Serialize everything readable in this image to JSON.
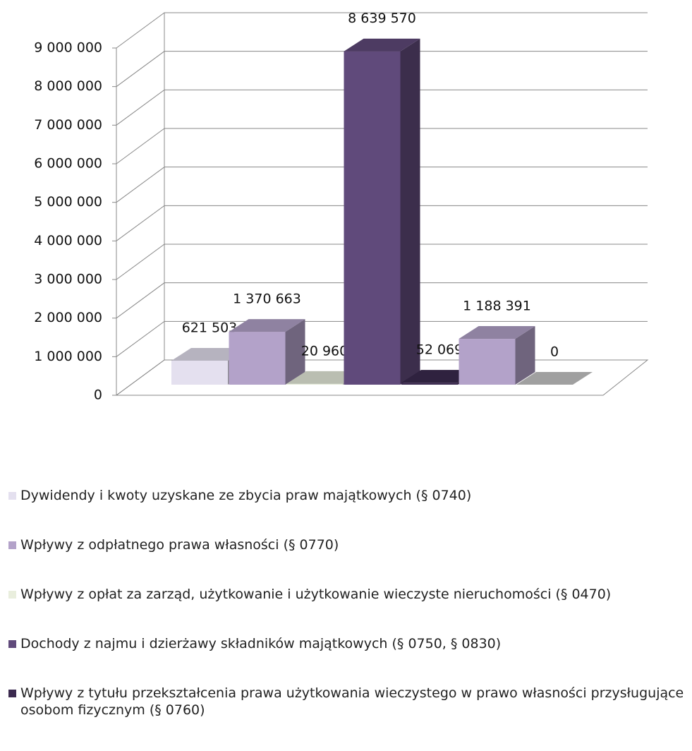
{
  "chart_data": {
    "type": "bar3d",
    "series": [
      {
        "name": "Dywidendy i kwoty uzyskane ze zbycia praw majątkowych (§ 0740)",
        "color": "#e4e0ef",
        "values": [
          621503
        ],
        "value_labels": [
          "621 503"
        ]
      },
      {
        "name": "Wpływy z odpłatnego prawa własności (§ 0770)",
        "color": "#b3a2c9",
        "values": [
          1370663
        ],
        "value_labels": [
          "1 370 663"
        ]
      },
      {
        "name": "Wpływy z opłat za zarząd, użytkowanie i użytkowanie wieczyste nieruchomości (§ 0470)",
        "color": "#e9eedd",
        "values": [
          20960
        ],
        "value_labels": [
          "20 960"
        ]
      },
      {
        "name": "Dochody z najmu i dzierżawy składników majątkowych (§ 0750, § 0830)",
        "color": "#604a7b",
        "values": [
          8639570
        ],
        "value_labels": [
          "8 639 570"
        ]
      },
      {
        "name": "Wpływy z tytułu przekształcenia prawa użytkowania wieczystego w prawo własności przysługujące osobom fizycznym (§ 0760)",
        "color": "#3b2a4f",
        "values": [
          52069
        ],
        "value_labels": [
          "52 069"
        ]
      },
      {
        "name": null,
        "color": "#b3a2c9",
        "values": [
          1188391
        ],
        "value_labels": [
          "1 188 391"
        ]
      },
      {
        "name": null,
        "color": "#c8c8c8",
        "values": [
          0
        ],
        "value_labels": [
          "0"
        ]
      }
    ],
    "ylim": [
      0,
      9000000
    ],
    "yticks": [
      0,
      {
        "value": 1000000,
        "label": "1 000 000"
      },
      {
        "value": 2000000,
        "label": "2 000 000"
      },
      {
        "value": 3000000,
        "label": "3 000 000"
      },
      {
        "value": 4000000,
        "label": "4 000 000"
      },
      {
        "value": 5000000,
        "label": "5 000 000"
      },
      {
        "value": 6000000,
        "label": "6 000 000"
      },
      {
        "value": 7000000,
        "label": "7 000 000"
      },
      {
        "value": 8000000,
        "label": "8 000 000"
      },
      {
        "value": 9000000,
        "label": "9 000 000"
      }
    ],
    "grid": true
  }
}
